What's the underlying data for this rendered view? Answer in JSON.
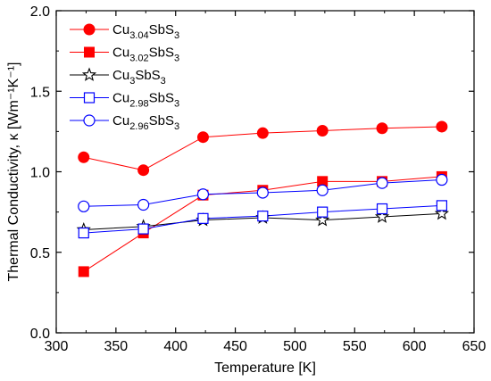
{
  "chart_data": {
    "type": "line",
    "xlabel": "Temperature [K]",
    "ylabel": "Thermal Conductivity, κ [Wm⁻¹K⁻¹]",
    "xlim": [
      300,
      650
    ],
    "ylim": [
      0.0,
      2.0
    ],
    "x_ticks": [
      "300",
      "350",
      "400",
      "450",
      "500",
      "550",
      "600",
      "650"
    ],
    "y_ticks": [
      "0.0",
      "0.5",
      "1.0",
      "1.5",
      "2.0"
    ],
    "grid": false,
    "legend_position": "top-left",
    "x": [
      323,
      373,
      423,
      473,
      523,
      573,
      623
    ],
    "series": [
      {
        "name": "Cu3.04SbS3",
        "legend": {
          "base": "Cu",
          "sub": "3.04",
          "rest": "SbS",
          "sub2": "3"
        },
        "marker": "circle-filled",
        "color": "#ff0000",
        "values": [
          1.09,
          1.01,
          1.215,
          1.24,
          1.255,
          1.27,
          1.28
        ]
      },
      {
        "name": "Cu3.02SbS3",
        "legend": {
          "base": "Cu",
          "sub": "3.02",
          "rest": "SbS",
          "sub2": "3"
        },
        "marker": "square-filled",
        "color": "#ff0000",
        "values": [
          0.38,
          0.62,
          0.855,
          0.885,
          0.94,
          0.94,
          0.97
        ]
      },
      {
        "name": "Cu3SbS3",
        "legend": {
          "base": "Cu",
          "sub": "3",
          "rest": "SbS",
          "sub2": "3"
        },
        "marker": "star-open",
        "color": "#000000",
        "values": [
          0.64,
          0.66,
          0.7,
          0.715,
          0.7,
          0.72,
          0.74
        ]
      },
      {
        "name": "Cu2.98SbS3",
        "legend": {
          "base": "Cu",
          "sub": "2.98",
          "rest": "SbS",
          "sub2": "3"
        },
        "marker": "square-open",
        "color": "#0000ff",
        "values": [
          0.62,
          0.645,
          0.71,
          0.725,
          0.75,
          0.77,
          0.79
        ]
      },
      {
        "name": "Cu2.96SbS3",
        "legend": {
          "base": "Cu",
          "sub": "2.96",
          "rest": "SbS",
          "sub2": "3"
        },
        "marker": "circle-open",
        "color": "#0000ff",
        "values": [
          0.785,
          0.795,
          0.86,
          0.87,
          0.885,
          0.93,
          0.95
        ]
      }
    ]
  }
}
